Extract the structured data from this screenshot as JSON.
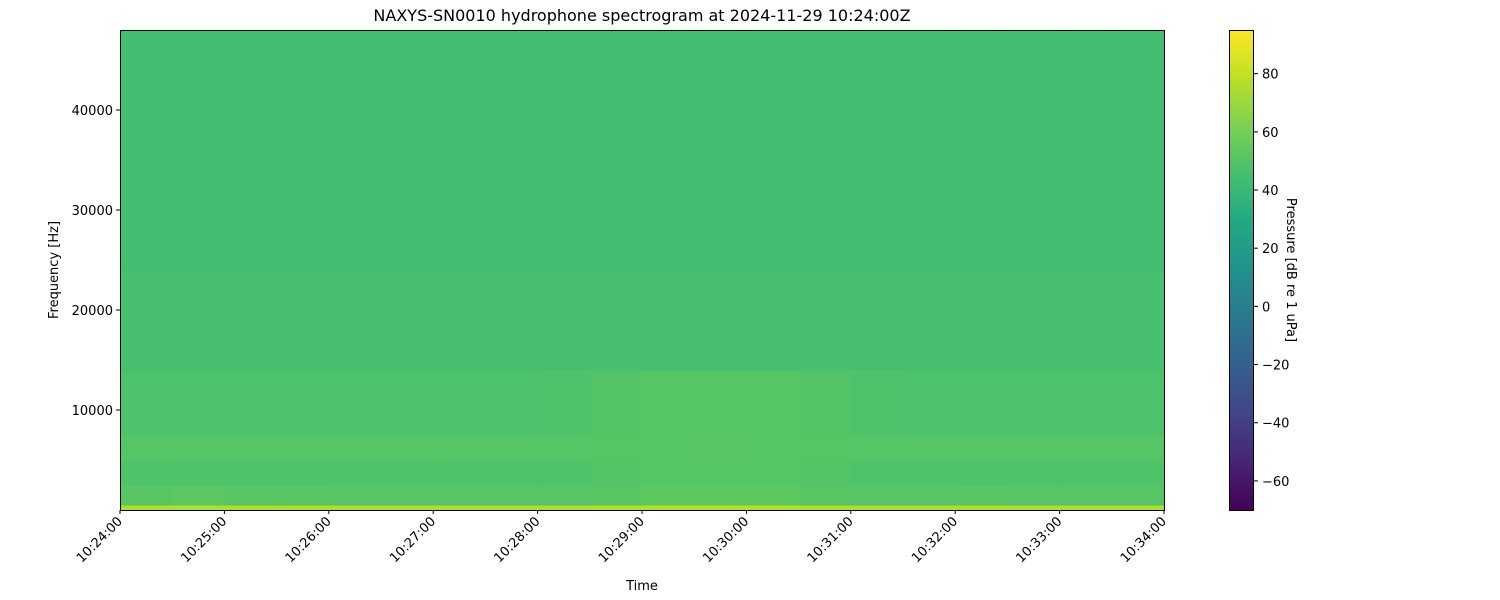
{
  "chart_data": {
    "type": "heatmap",
    "title": "NAXYS-SN0010 hydrophone spectrogram at 2024-11-29 10:24:00Z",
    "xlabel": "Time",
    "ylabel": "Frequency [Hz]",
    "xlim": [
      "10:24:00",
      "10:34:00"
    ],
    "ylim": [
      0,
      48000
    ],
    "x_ticks": [
      "10:24:00",
      "10:25:00",
      "10:26:00",
      "10:27:00",
      "10:28:00",
      "10:29:00",
      "10:30:00",
      "10:31:00",
      "10:32:00",
      "10:33:00",
      "10:34:00"
    ],
    "y_ticks": [
      10000,
      20000,
      30000,
      40000
    ],
    "y_tick_labels": [
      "10000",
      "20000",
      "30000",
      "40000"
    ],
    "colorbar": {
      "label": "Pressure [dB re 1 uPa]",
      "range": [
        -70,
        95
      ],
      "ticks": [
        -60,
        -40,
        -20,
        0,
        20,
        40,
        60,
        80
      ],
      "tick_labels": [
        "−60",
        "−40",
        "−20",
        "0",
        "20",
        "40",
        "60",
        "80"
      ],
      "colormap": "viridis"
    },
    "time_bins_seconds_step": 30,
    "freq_band_edges_hz": [
      0,
      500,
      2500,
      5000,
      7500,
      14000,
      24000,
      48000
    ],
    "values_db": [
      [
        76,
        76,
        76,
        76,
        76,
        76,
        76,
        76,
        76,
        77,
        77,
        77,
        77,
        76,
        76,
        76,
        76,
        76,
        76,
        76
      ],
      [
        52,
        53,
        52,
        52,
        51,
        51,
        51,
        51,
        51,
        52,
        53,
        53,
        53,
        52,
        51,
        51,
        52,
        51,
        51,
        51
      ],
      [
        49,
        49,
        49,
        49,
        49,
        49,
        49,
        49,
        49,
        50,
        51,
        51,
        51,
        50,
        49,
        49,
        49,
        49,
        49,
        49
      ],
      [
        51,
        51,
        51,
        51,
        51,
        51,
        51,
        51,
        51,
        51,
        51,
        52,
        51,
        51,
        51,
        51,
        51,
        51,
        51,
        51
      ],
      [
        48,
        48,
        48,
        48,
        48,
        48,
        48,
        48,
        49,
        50,
        51,
        51,
        51,
        50,
        49,
        48,
        48,
        48,
        48,
        48
      ],
      [
        46,
        46,
        46,
        46,
        46,
        46,
        46,
        46,
        46,
        46,
        46,
        46,
        46,
        46,
        46,
        46,
        46,
        46,
        46,
        46
      ],
      [
        45,
        45,
        45,
        45,
        45,
        45,
        45,
        45,
        45,
        45,
        45,
        45,
        45,
        45,
        45,
        45,
        45,
        45,
        45,
        45
      ]
    ],
    "grid": false,
    "legend": "colorbar-right"
  }
}
